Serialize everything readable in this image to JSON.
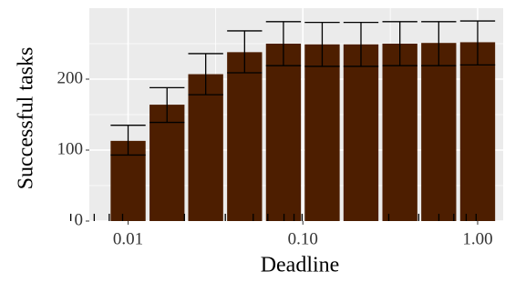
{
  "chart_data": {
    "type": "bar",
    "xlabel": "Deadline",
    "ylabel": "Successful tasks",
    "x_scale": "log10",
    "x_range": [
      0.006,
      1.4
    ],
    "x_ticks": [
      0.01,
      0.1,
      1.0
    ],
    "x_tick_labels": [
      "0.01",
      "0.10",
      "1.00"
    ],
    "y_range": [
      0,
      300
    ],
    "y_ticks": [
      0,
      100,
      200
    ],
    "y_tick_labels": [
      "0",
      "100",
      "200"
    ],
    "grid": true,
    "bar_color": "#4d1e00",
    "panel_background": "#ebebeb",
    "grid_color": "#ffffff",
    "error_bar_color": "#000000",
    "x": [
      0.01,
      0.0167,
      0.0278,
      0.0464,
      0.0774,
      0.129,
      0.215,
      0.359,
      0.599,
      1.0
    ],
    "values": [
      113,
      164,
      207,
      238,
      250,
      249,
      249,
      250,
      251,
      252
    ],
    "error_low": [
      93,
      139,
      178,
      209,
      219,
      218,
      218,
      219,
      219,
      220
    ],
    "error_high": [
      135,
      188,
      236,
      268,
      281,
      280,
      280,
      281,
      281,
      282
    ],
    "rug_x": [
      0.0047,
      0.0064,
      0.0078,
      0.0093,
      0.021,
      0.036,
      0.052,
      0.063,
      0.078,
      0.089,
      0.099,
      0.31,
      0.46,
      0.6,
      0.73,
      0.86,
      0.98
    ]
  }
}
